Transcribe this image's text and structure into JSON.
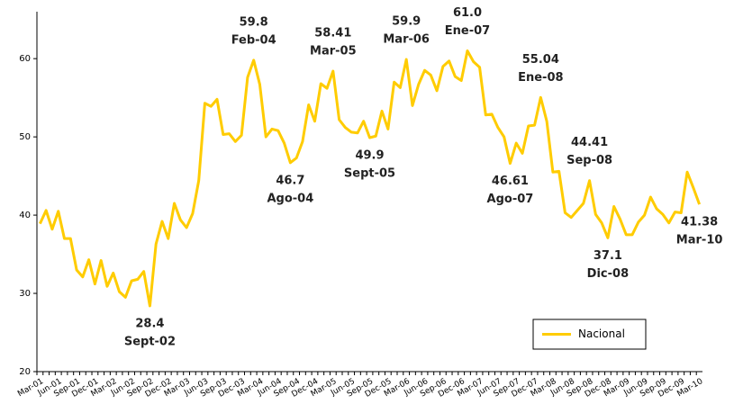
{
  "chart_data": {
    "type": "line",
    "categories": [
      "Mar-01",
      null,
      null,
      "Jun-01",
      null,
      null,
      "Sep-01",
      null,
      null,
      "Dec-01",
      null,
      null,
      "Mar-02",
      null,
      null,
      "Jun-02",
      null,
      null,
      "Sep-02",
      null,
      null,
      "Dec-02",
      null,
      null,
      "Mar-03",
      null,
      null,
      "Jun-03",
      null,
      null,
      "Sep-03",
      null,
      null,
      "Dec-03",
      null,
      null,
      "Mar-04",
      null,
      null,
      "Jun-04",
      null,
      null,
      "Sep-04",
      null,
      null,
      "Dec-04",
      null,
      null,
      "Mar-05",
      null,
      null,
      "Jun-05",
      null,
      null,
      "Sep-05",
      null,
      null,
      "Dec-05",
      null,
      null,
      "Mar-06",
      null,
      null,
      "Jun-06",
      null,
      null,
      "Sep-06",
      null,
      null,
      "Dec-06",
      null,
      null,
      "Mar-07",
      null,
      null,
      "Jun-07",
      null,
      null,
      "Sep-07",
      null,
      null,
      "Dec-07",
      null,
      null,
      "Mar-08",
      null,
      null,
      "Jun-08",
      null,
      null,
      "Sep-08",
      null,
      null,
      "Dec-08",
      null,
      null,
      "Mar-09",
      null,
      null,
      "Jun-09",
      null,
      null,
      "Sep-09",
      null,
      null,
      "Dec-09",
      null,
      null,
      "Mar-10"
    ],
    "series": [
      {
        "name": "Nacional",
        "color": "#ffcc00",
        "values": [
          38.9,
          40.6,
          38.2,
          40.5,
          37.0,
          37.0,
          33.0,
          32.1,
          34.3,
          31.2,
          34.2,
          30.9,
          32.6,
          30.2,
          29.5,
          31.6,
          31.8,
          32.8,
          28.4,
          36.3,
          39.2,
          37.0,
          41.5,
          39.4,
          38.4,
          40.2,
          44.4,
          54.3,
          53.9,
          54.8,
          50.3,
          50.4,
          49.4,
          50.2,
          57.6,
          59.8,
          56.7,
          50.0,
          51.0,
          50.8,
          49.2,
          46.7,
          47.3,
          49.4,
          54.1,
          52.0,
          56.8,
          56.2,
          58.41,
          52.2,
          51.2,
          50.6,
          50.5,
          52.0,
          49.9,
          50.1,
          53.3,
          51.0,
          57.0,
          56.3,
          59.9,
          54.0,
          56.7,
          58.5,
          57.9,
          55.9,
          59.0,
          59.7,
          57.7,
          57.2,
          61.0,
          59.6,
          58.9,
          52.8,
          52.9,
          51.2,
          50.0,
          46.61,
          49.2,
          47.9,
          51.4,
          51.5,
          55.04,
          52.0,
          45.5,
          45.6,
          40.3,
          39.7,
          40.6,
          41.5,
          44.41,
          40.1,
          39.0,
          37.1,
          41.1,
          39.5,
          37.5,
          37.5,
          39.1,
          40.0,
          42.3,
          40.8,
          40.1,
          39.0,
          40.4,
          40.3,
          45.5,
          43.5,
          41.38
        ]
      }
    ],
    "annotations": [
      {
        "value": 28.4,
        "label": "Sept-02"
      },
      {
        "value": 59.8,
        "label": "Feb-04"
      },
      {
        "value": 46.7,
        "label": "Ago-04"
      },
      {
        "value": 58.41,
        "label": "Mar-05"
      },
      {
        "value": 49.9,
        "label": "Sept-05"
      },
      {
        "value": 59.9,
        "label": "Mar-06"
      },
      {
        "value": 61.0,
        "value_label": "61.0",
        "label": "Ene-07"
      },
      {
        "value": 46.61,
        "label": "Ago-07"
      },
      {
        "value": 55.04,
        "label": "Ene-08"
      },
      {
        "value": 44.41,
        "label": "Sep-08"
      },
      {
        "value": 37.1,
        "label": "Dic-08"
      },
      {
        "value": 41.38,
        "label": "Mar-10"
      }
    ],
    "ylim": [
      20,
      66
    ],
    "yticks": [
      20,
      30,
      40,
      50,
      60
    ],
    "grid": false,
    "legend_position": "lower right"
  }
}
